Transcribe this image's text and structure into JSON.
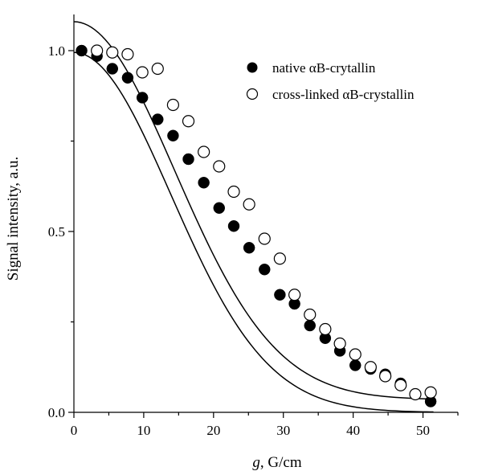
{
  "chart_data": {
    "type": "scatter",
    "xlabel_italic": "g",
    "xlabel_rest": ", G/cm",
    "ylabel": "Signal intensity, a.u.",
    "xlim": [
      0,
      55
    ],
    "ylim": [
      0,
      1.1
    ],
    "x_ticks": [
      0,
      10,
      20,
      30,
      40,
      50
    ],
    "y_ticks": [
      0.0,
      0.5,
      1.0
    ],
    "x_tick_labels": [
      "0",
      "10",
      "20",
      "30",
      "40",
      "50"
    ],
    "y_tick_labels": [
      "0.0",
      "0.5",
      "1.0"
    ],
    "legend_position": "top-right",
    "grid": false,
    "series": [
      {
        "name": "native αB-crytallin",
        "marker": "filled-circle",
        "x": [
          1.1,
          3.3,
          5.5,
          7.7,
          9.8,
          12.0,
          14.2,
          16.4,
          18.6,
          20.8,
          22.9,
          25.1,
          27.3,
          29.5,
          31.6,
          33.8,
          36.0,
          38.1,
          40.3,
          42.5,
          44.6,
          46.8,
          48.9,
          51.1
        ],
        "y": [
          1.0,
          0.985,
          0.95,
          0.925,
          0.87,
          0.81,
          0.765,
          0.7,
          0.635,
          0.565,
          0.515,
          0.455,
          0.395,
          0.325,
          0.3,
          0.24,
          0.205,
          0.17,
          0.13,
          0.12,
          0.105,
          0.08,
          0.05,
          0.03
        ],
        "fit": {
          "a": 0.995,
          "sigma": 19.6,
          "offset": 0.0
        }
      },
      {
        "name": "cross-linked αB-crystallin",
        "marker": "open-circle",
        "x": [
          3.3,
          5.5,
          7.7,
          9.8,
          12.0,
          14.2,
          16.4,
          18.6,
          20.8,
          22.9,
          25.1,
          27.3,
          29.5,
          31.6,
          33.8,
          36.0,
          38.1,
          40.3,
          42.5,
          44.6,
          46.8,
          48.9,
          51.1
        ],
        "y": [
          1.0,
          0.995,
          0.99,
          0.94,
          0.95,
          0.85,
          0.805,
          0.72,
          0.68,
          0.61,
          0.575,
          0.48,
          0.425,
          0.325,
          0.27,
          0.23,
          0.19,
          0.16,
          0.125,
          0.1,
          0.075,
          0.05,
          0.055
        ],
        "fit": {
          "a": 1.045,
          "sigma": 20.4,
          "offset": 0.035,
          "peak": 1.08
        }
      }
    ]
  }
}
